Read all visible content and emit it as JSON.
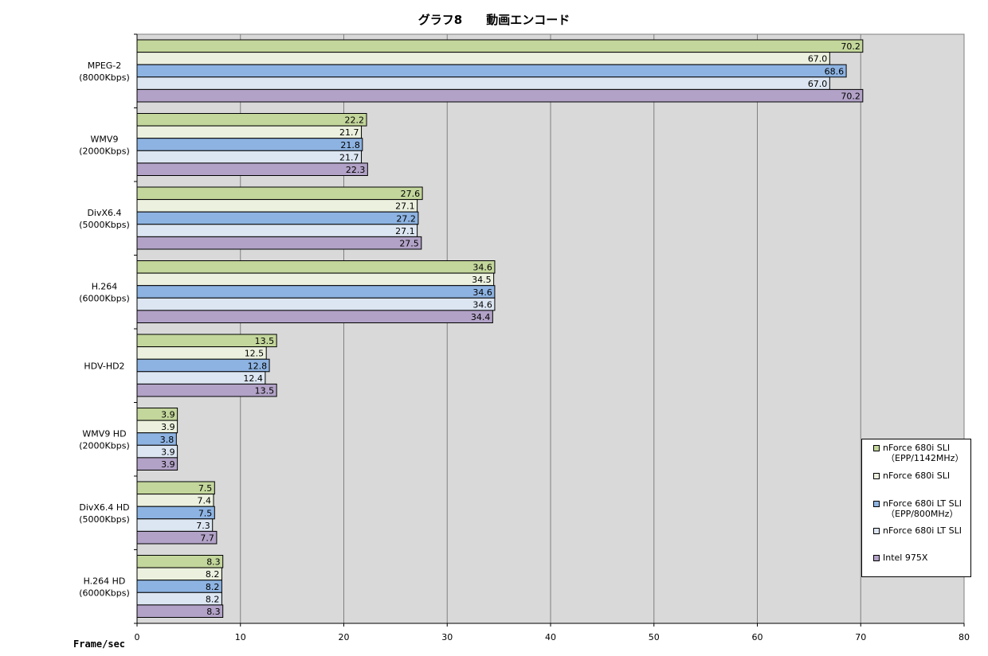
{
  "chart_data": {
    "type": "bar",
    "orientation": "horizontal",
    "title": "グラフ8　　動画エンコード",
    "xlabel": "Frame/sec",
    "xlim": [
      0,
      80
    ],
    "xticks": [
      0,
      10,
      20,
      30,
      40,
      50,
      60,
      70,
      80
    ],
    "grid": true,
    "legend_position": "right",
    "categories": [
      [
        "MPEG-2",
        "(8000Kbps)"
      ],
      [
        "WMV9",
        "(2000Kbps)"
      ],
      [
        "DivX6.4",
        "(5000Kbps)"
      ],
      [
        "H.264",
        "(6000Kbps)"
      ],
      [
        "HDV-HD2"
      ],
      [
        "WMV9 HD",
        "(2000Kbps)"
      ],
      [
        "DivX6.4 HD",
        "(5000Kbps)"
      ],
      [
        "H.264 HD",
        "(6000Kbps)"
      ]
    ],
    "series": [
      {
        "name": "nForce 680i SLI",
        "name_sub": "（EPP/1142MHz）",
        "color": "#c3d69b",
        "values": [
          70.2,
          22.2,
          27.6,
          34.6,
          13.5,
          3.9,
          7.5,
          8.3
        ]
      },
      {
        "name": "nForce 680i SLI",
        "color": "#ebf1de",
        "values": [
          67.0,
          21.7,
          27.1,
          34.5,
          12.5,
          3.9,
          7.4,
          8.2
        ]
      },
      {
        "name": "nForce 680i LT SLI",
        "name_sub": "（EPP/800MHz）",
        "color": "#8db3e2",
        "values": [
          68.6,
          21.8,
          27.2,
          34.6,
          12.8,
          3.8,
          7.5,
          8.2
        ]
      },
      {
        "name": "nForce 680i LT SLI",
        "color": "#dce6f2",
        "values": [
          67.0,
          21.7,
          27.1,
          34.6,
          12.4,
          3.9,
          7.3,
          8.2
        ]
      },
      {
        "name": "Intel 975X",
        "color": "#b2a2c7",
        "values": [
          70.2,
          22.3,
          27.5,
          34.4,
          13.5,
          3.9,
          7.7,
          8.3
        ]
      }
    ],
    "plot_background": "#d9d9d9",
    "gridline_color": "#808080"
  }
}
